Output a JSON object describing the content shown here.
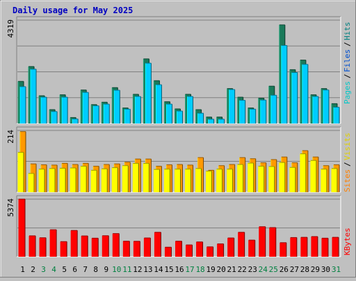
{
  "chart_data": {
    "type": "bar",
    "title": "Daily usage for May 2025",
    "categories": [
      "1",
      "2",
      "3",
      "4",
      "5",
      "6",
      "7",
      "8",
      "9",
      "10",
      "11",
      "12",
      "13",
      "14",
      "15",
      "16",
      "17",
      "18",
      "19",
      "20",
      "21",
      "22",
      "23",
      "24",
      "25",
      "26",
      "27",
      "28",
      "29",
      "30",
      "31"
    ],
    "weekend_days": [
      "3",
      "4",
      "10",
      "11",
      "17",
      "18",
      "24",
      "25",
      "31"
    ],
    "colors": {
      "hits": "#1a7a5a",
      "files": "#00ccff",
      "pages": "#00ccff",
      "visits": "#ffff00",
      "sites": "#ff9900",
      "kbytes": "#ff0000",
      "weekday_label": "#000000",
      "weekend_label": "#008040",
      "title": "#0000c0"
    },
    "panels": [
      {
        "name": "hits-files-pages",
        "ymax_label": "4319",
        "ymax": 4319,
        "legend": [
          {
            "key": "pages",
            "label": "Pages",
            "color": "#00c8c8"
          },
          {
            "key": "files",
            "label": "Files",
            "color": "#0050d0"
          },
          {
            "key": "hits",
            "label": "Hits",
            "color": "#008080"
          }
        ],
        "series": [
          {
            "name": "Hits",
            "values": [
              1760,
              2380,
              1160,
              580,
              1200,
              250,
              1400,
              790,
              890,
              1500,
              650,
              1220,
              2700,
              1790,
              910,
              610,
              1220,
              580,
              270,
              270,
              1460,
              1100,
              650,
              1060,
              1560,
              4120,
              2250,
              2650,
              1200,
              1460,
              830
            ]
          },
          {
            "name": "Files",
            "values": [
              1540,
              2270,
              1100,
              500,
              1100,
              190,
              1300,
              740,
              810,
              1390,
              600,
              1130,
              2520,
              1620,
              810,
              520,
              1130,
              430,
              180,
              180,
              1420,
              970,
              600,
              980,
              1180,
              3260,
              2130,
              2470,
              1130,
              1400,
              680
            ]
          }
        ]
      },
      {
        "name": "visits-sites",
        "ymax_label": "214",
        "ymax": 214,
        "legend": [
          {
            "key": "sites",
            "label": "Sites",
            "color": "#ff8000"
          },
          {
            "key": "visits",
            "label": "Visits",
            "color": "#e0d000"
          }
        ],
        "series": [
          {
            "name": "Visits",
            "values": [
              138,
              65,
              80,
              82,
              83,
              84,
              90,
              76,
              81,
              85,
              92,
              100,
              100,
              79,
              80,
              80,
              80,
              82,
              73,
              80,
              80,
              96,
              101,
              90,
              89,
              103,
              86,
              133,
              110,
              80,
              82
            ]
          },
          {
            "name": "Sites",
            "values": [
              210,
              98,
              95,
              94,
              100,
              96,
              100,
              90,
              96,
              98,
              104,
              115,
              115,
              90,
              95,
              96,
              94,
              120,
              76,
              92,
              96,
              120,
              116,
              102,
              113,
              122,
              102,
              144,
              122,
              92,
              95
            ]
          }
        ]
      },
      {
        "name": "kbytes",
        "ymax_label": "5374",
        "ymax": 5374,
        "legend": [
          {
            "key": "kbytes",
            "label": "KBytes",
            "color": "#ff0000"
          }
        ],
        "series": [
          {
            "name": "KBytes",
            "values": [
              5374,
              1950,
              1770,
              2520,
              1410,
              2450,
              1940,
              1730,
              1960,
              2160,
              1450,
              1440,
              1750,
              2280,
              890,
              1450,
              1100,
              1380,
              920,
              1200,
              1750,
              2280,
              1550,
              2800,
              2720,
              1310,
              1790,
              1810,
              1880,
              1730,
              1810
            ]
          }
        ]
      }
    ]
  }
}
